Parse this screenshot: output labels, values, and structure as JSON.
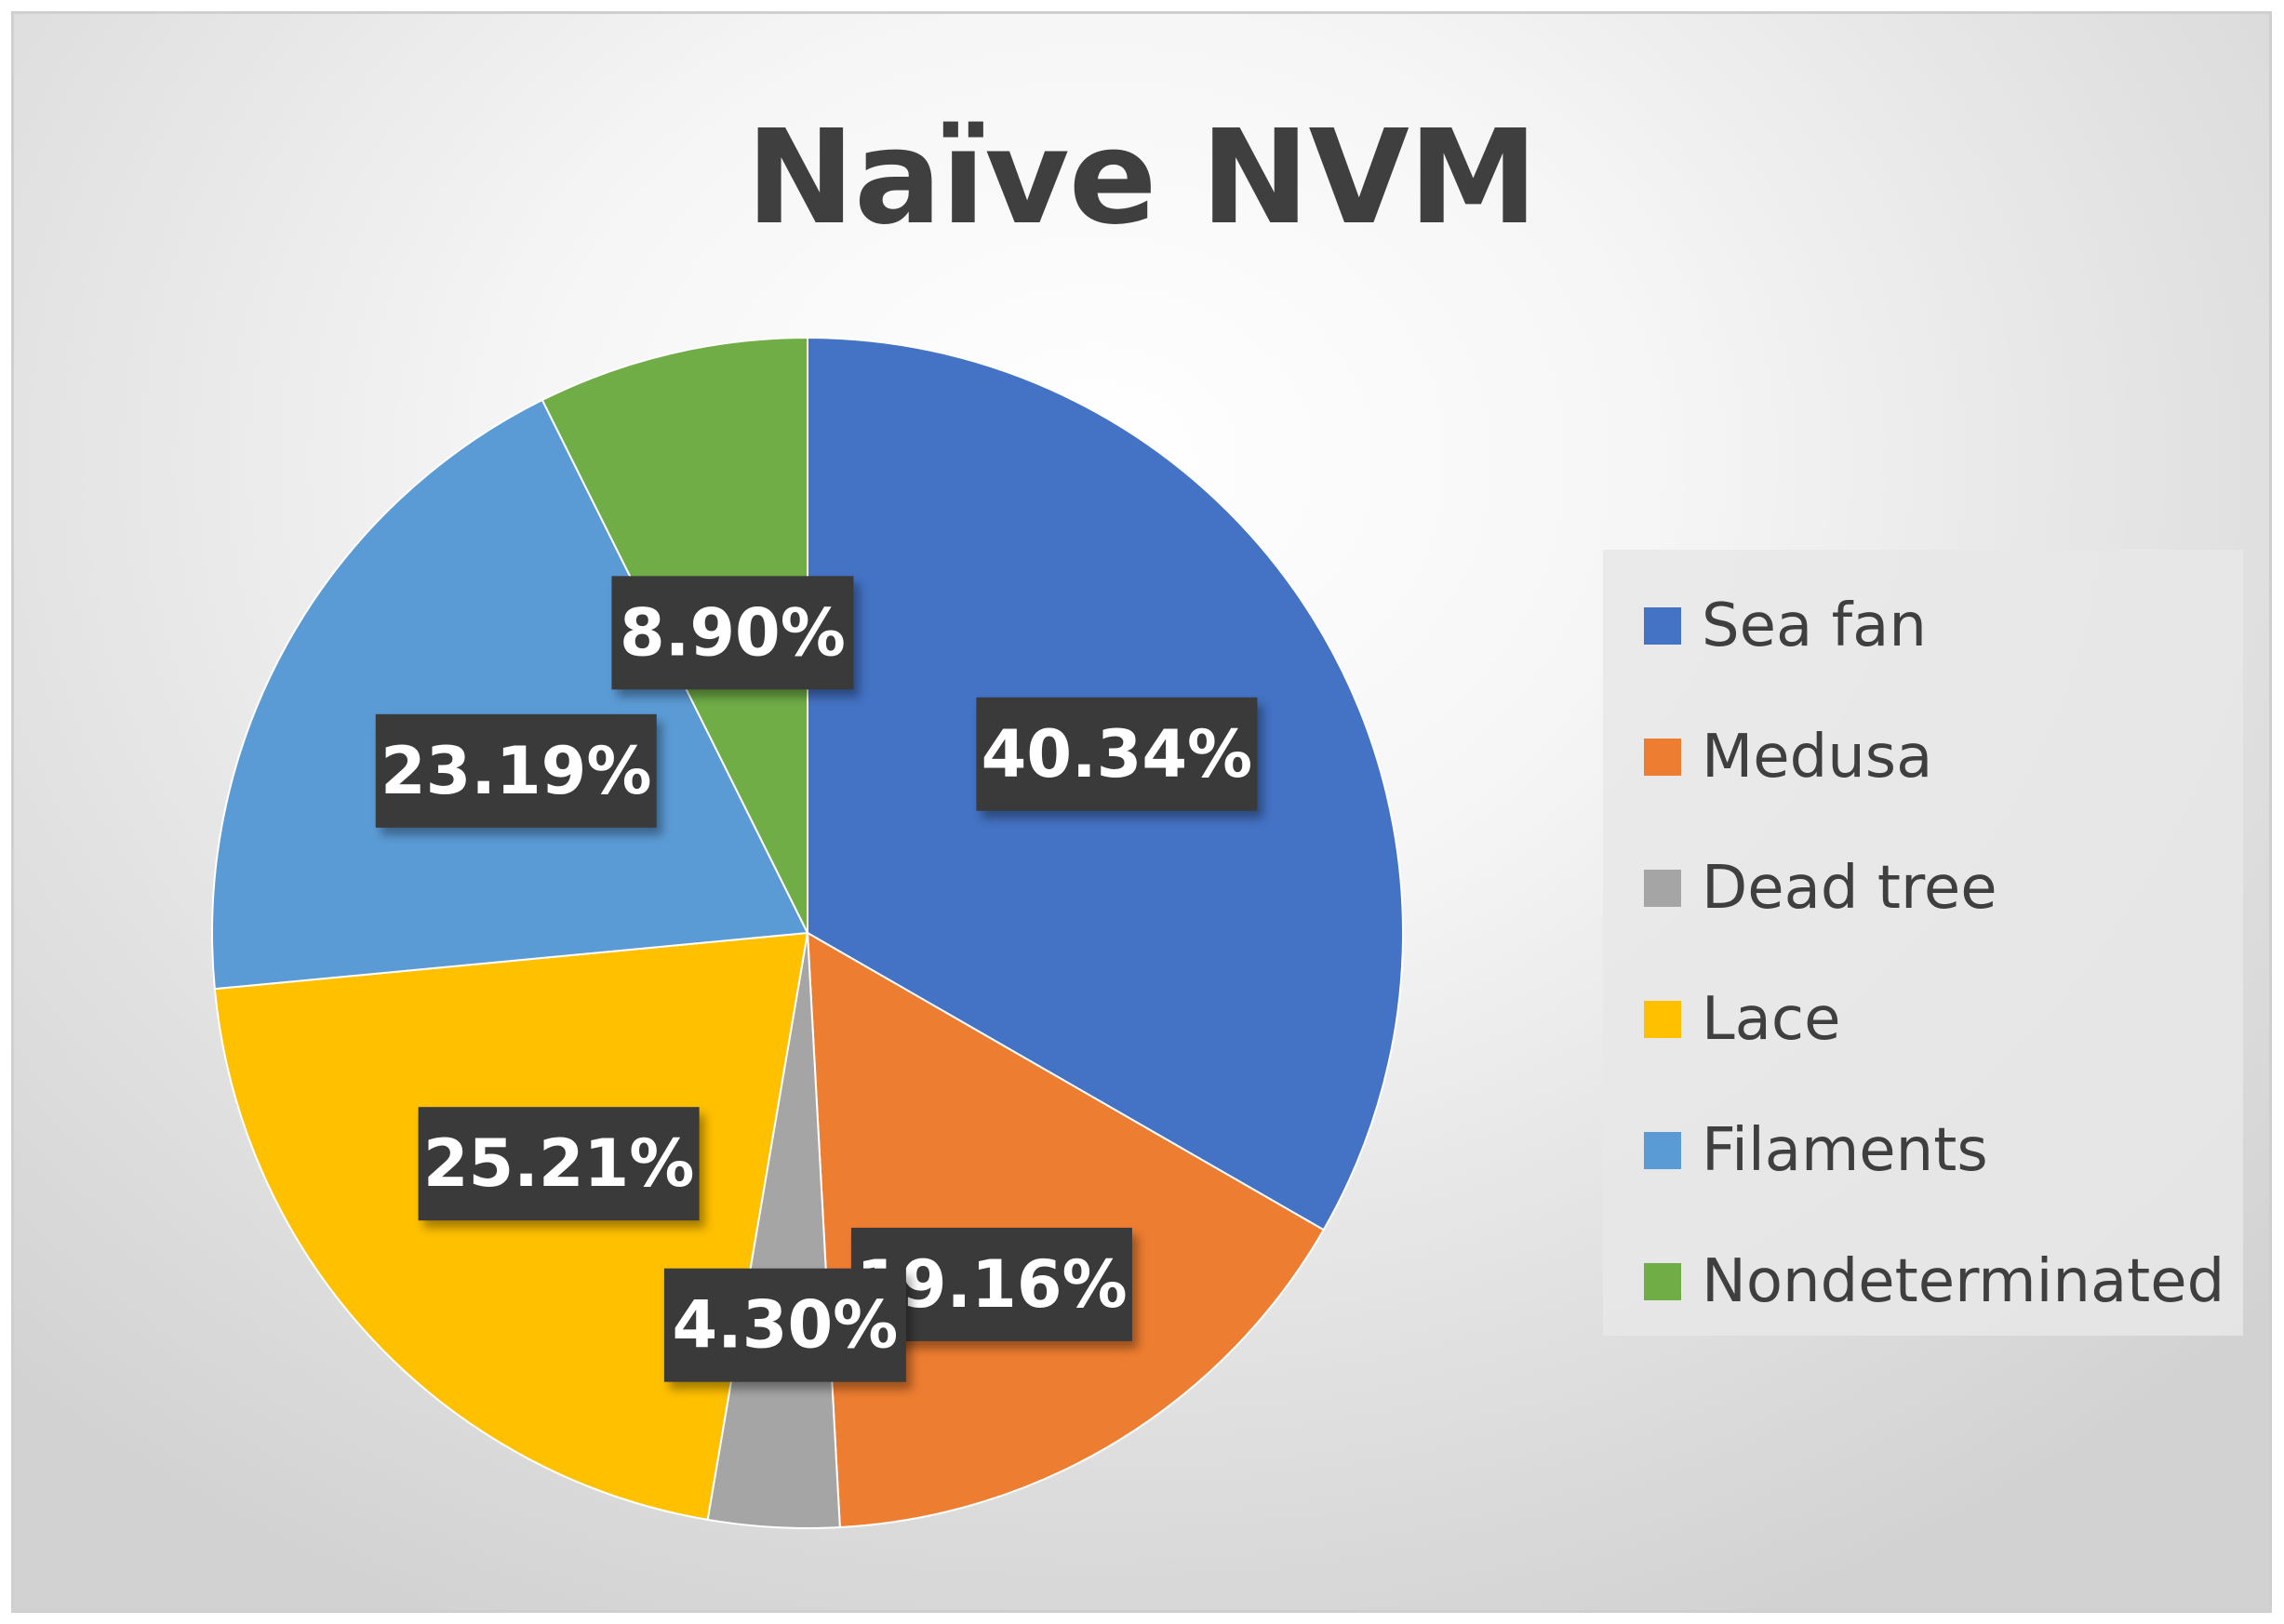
{
  "chart_data": {
    "type": "pie",
    "title": "Naïve NVM",
    "start_angle_deg": 0,
    "direction": "clockwise",
    "legend_position": "right",
    "slices": [
      {
        "label": "Sea fan",
        "value": 40.34,
        "display": "40.34%",
        "color": "#4472C4"
      },
      {
        "label": "Medusa",
        "value": 19.16,
        "display": "19.16%",
        "color": "#ED7D31"
      },
      {
        "label": "Dead tree",
        "value": 4.3,
        "display": "4.30%",
        "color": "#A5A5A5"
      },
      {
        "label": "Lace",
        "value": 25.21,
        "display": "25.21%",
        "color": "#FFC000"
      },
      {
        "label": "Filaments",
        "value": 23.19,
        "display": "23.19%",
        "color": "#5B9BD5"
      },
      {
        "label": "Nondeterminated",
        "value": 8.9,
        "display": "8.90%",
        "color": "#70AD47"
      }
    ]
  }
}
